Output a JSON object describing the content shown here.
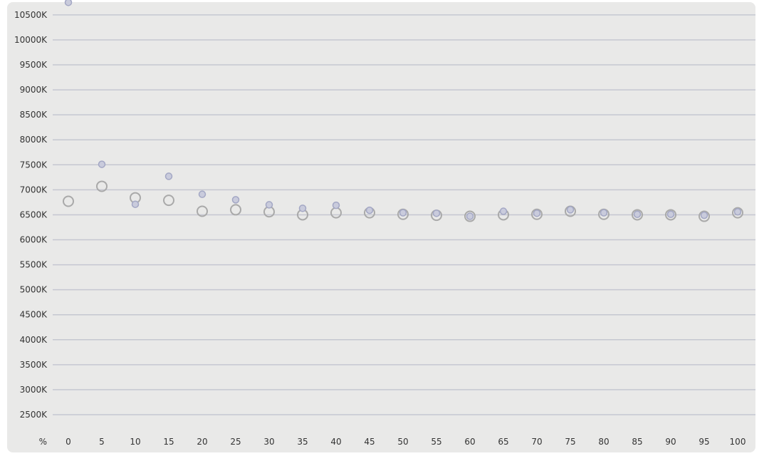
{
  "chart_data": {
    "type": "scatter",
    "title": "",
    "xlabel": "%",
    "ylabel": "",
    "x": [
      0,
      5,
      10,
      15,
      20,
      25,
      30,
      35,
      40,
      45,
      50,
      55,
      60,
      65,
      70,
      75,
      80,
      85,
      90,
      95,
      100
    ],
    "x_tick_labels": [
      "0",
      "5",
      "10",
      "15",
      "20",
      "25",
      "30",
      "35",
      "40",
      "45",
      "50",
      "55",
      "60",
      "65",
      "70",
      "75",
      "80",
      "85",
      "90",
      "95",
      "100"
    ],
    "y_tick_values": [
      2500,
      3000,
      3500,
      4000,
      4500,
      5000,
      5500,
      6000,
      6500,
      7000,
      7500,
      8000,
      8500,
      9000,
      9500,
      10000,
      10500
    ],
    "y_tick_labels": [
      "2500K",
      "3000K",
      "3500K",
      "4000K",
      "4500K",
      "5000K",
      "5500K",
      "6000K",
      "6500K",
      "7000K",
      "7500K",
      "8000K",
      "8500K",
      "9000K",
      "9500K",
      "10000K",
      "10500K"
    ],
    "ylim": [
      2500,
      10750
    ],
    "grid": "horizontal",
    "series": [
      {
        "marker": "small-filled",
        "color": "#a3a7c4",
        "fill": "#c9cbdc",
        "values": [
          10750,
          7510,
          6710,
          7270,
          6910,
          6800,
          6700,
          6630,
          6690,
          6590,
          6540,
          6530,
          6470,
          6570,
          6530,
          6600,
          6540,
          6510,
          6510,
          6490,
          6560
        ]
      },
      {
        "marker": "large-hollow",
        "color": "#a9a9a9",
        "fill": "none",
        "values": [
          6770,
          7070,
          6840,
          6790,
          6570,
          6600,
          6560,
          6500,
          6540,
          6540,
          6510,
          6490,
          6470,
          6500,
          6510,
          6570,
          6510,
          6500,
          6500,
          6470,
          6540
        ]
      }
    ]
  }
}
